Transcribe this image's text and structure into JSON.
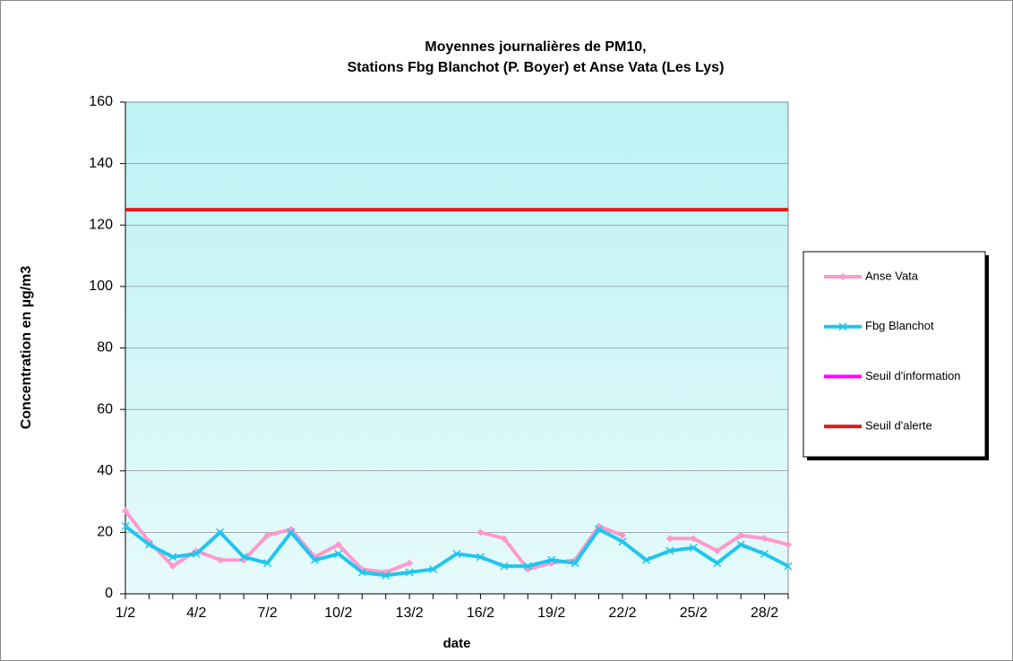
{
  "chart_data": {
    "type": "line",
    "title": [
      "Moyennes journalières de PM10,",
      "Stations Fbg Blanchot (P. Boyer) et Anse Vata (Les Lys)"
    ],
    "x_label": "date",
    "y_label": "Concentration en µg/m3",
    "categories": [
      "1/2",
      null,
      null,
      "4/2",
      null,
      null,
      "7/2",
      null,
      null,
      "10/2",
      null,
      null,
      "13/2",
      null,
      null,
      "16/2",
      null,
      null,
      "19/2",
      null,
      null,
      "22/2",
      null,
      null,
      "25/2",
      null,
      null,
      "28/2",
      null
    ],
    "series": [
      {
        "name": "Anse Vata",
        "color": "#ff99cc",
        "marker": "diamond",
        "values": [
          27,
          17,
          9,
          14,
          11,
          11,
          19,
          21,
          12,
          16,
          8,
          7,
          10,
          null,
          null,
          20,
          18,
          8,
          10,
          11,
          22,
          19,
          null,
          18,
          18,
          14,
          19,
          18,
          16
        ]
      },
      {
        "name": "Fbg Blanchot",
        "color": "#1fc6ee",
        "marker": "x",
        "values": [
          22,
          16,
          12,
          13,
          20,
          12,
          10,
          20,
          11,
          13,
          7,
          6,
          7,
          8,
          13,
          12,
          9,
          9,
          11,
          10,
          21,
          17,
          11,
          14,
          15,
          10,
          16,
          13,
          9
        ]
      },
      {
        "name": "Seuil d'information",
        "color": "#ff00ff",
        "marker": "none",
        "values": [
          null,
          null,
          null,
          null,
          null,
          null,
          null,
          null,
          null,
          null,
          null,
          null,
          null,
          null,
          null,
          null,
          null,
          null,
          null,
          null,
          null,
          null,
          null,
          null,
          null,
          null,
          null,
          null,
          null
        ]
      },
      {
        "name": "Seuil d'alerte",
        "color": "#e31a1c",
        "marker": "none",
        "values": [
          125,
          125,
          125,
          125,
          125,
          125,
          125,
          125,
          125,
          125,
          125,
          125,
          125,
          125,
          125,
          125,
          125,
          125,
          125,
          125,
          125,
          125,
          125,
          125,
          125,
          125,
          125,
          125,
          125
        ]
      }
    ],
    "ylim": [
      0,
      160
    ],
    "yticks": [
      0,
      20,
      40,
      60,
      80,
      100,
      120,
      140,
      160
    ],
    "grid": true,
    "legend": "right"
  }
}
